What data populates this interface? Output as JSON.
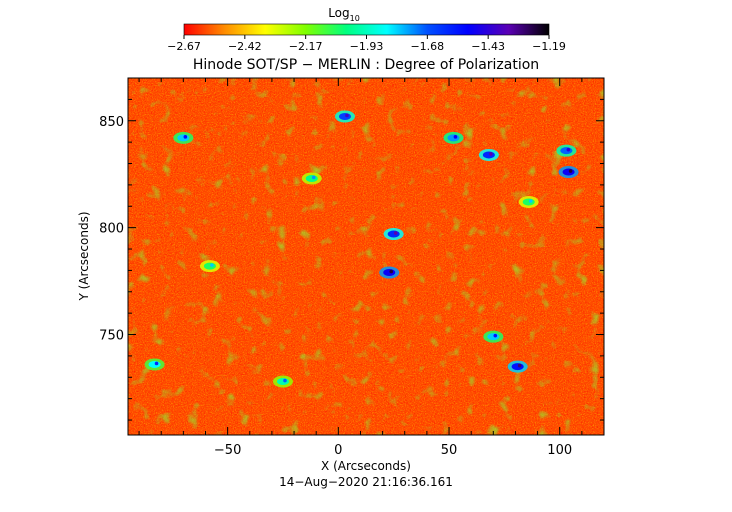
{
  "colorbar": {
    "title": "Log",
    "title_sub": "10",
    "colormap": [
      "#ff0000",
      "#ff8c00",
      "#ffff00",
      "#7fff00",
      "#00ff7f",
      "#00ffff",
      "#0050ff",
      "#0000ff",
      "#5a00b4",
      "#000000"
    ],
    "ticks": [
      "−2.67",
      "−2.42",
      "−2.17",
      "−1.93",
      "−1.68",
      "−1.43",
      "−1.19"
    ]
  },
  "chart_data": {
    "type": "heatmap",
    "title": "Hinode SOT/SP − MERLIN : Degree of Polarization",
    "xlabel": "X (Arcseconds)",
    "ylabel": "Y (Arcseconds)",
    "xlim": [
      -95,
      120
    ],
    "ylim": [
      703,
      870
    ],
    "xticks": [
      -50,
      0,
      50,
      100
    ],
    "xtick_labels": [
      "−50",
      "0",
      "50",
      "100"
    ],
    "yticks": [
      750,
      800,
      850
    ],
    "ytick_labels": [
      "750",
      "800",
      "850"
    ],
    "value_range": [
      -2.67,
      -1.19
    ],
    "value_scale": "log10",
    "grid": false,
    "dominant_level": -2.5,
    "patches": [
      {
        "x": 3,
        "y": 852,
        "level": -1.65
      },
      {
        "x": 25,
        "y": 797,
        "level": -1.6
      },
      {
        "x": 23,
        "y": 779,
        "level": -1.5
      },
      {
        "x": 52,
        "y": 842,
        "level": -1.75
      },
      {
        "x": 68,
        "y": 834,
        "level": -1.6
      },
      {
        "x": 103,
        "y": 836,
        "level": -1.7
      },
      {
        "x": 104,
        "y": 826,
        "level": -1.5
      },
      {
        "x": 81,
        "y": 735,
        "level": -1.55
      },
      {
        "x": 70,
        "y": 749,
        "level": -1.8
      },
      {
        "x": -70,
        "y": 842,
        "level": -1.8
      },
      {
        "x": -83,
        "y": 736,
        "level": -1.85
      },
      {
        "x": -25,
        "y": 728,
        "level": -1.95
      },
      {
        "x": -12,
        "y": 823,
        "level": -2.0
      },
      {
        "x": -58,
        "y": 782,
        "level": -2.05
      },
      {
        "x": 86,
        "y": 812,
        "level": -2.05
      }
    ]
  },
  "footer": {
    "date": "14−Aug−2020 21:16:36.161"
  }
}
